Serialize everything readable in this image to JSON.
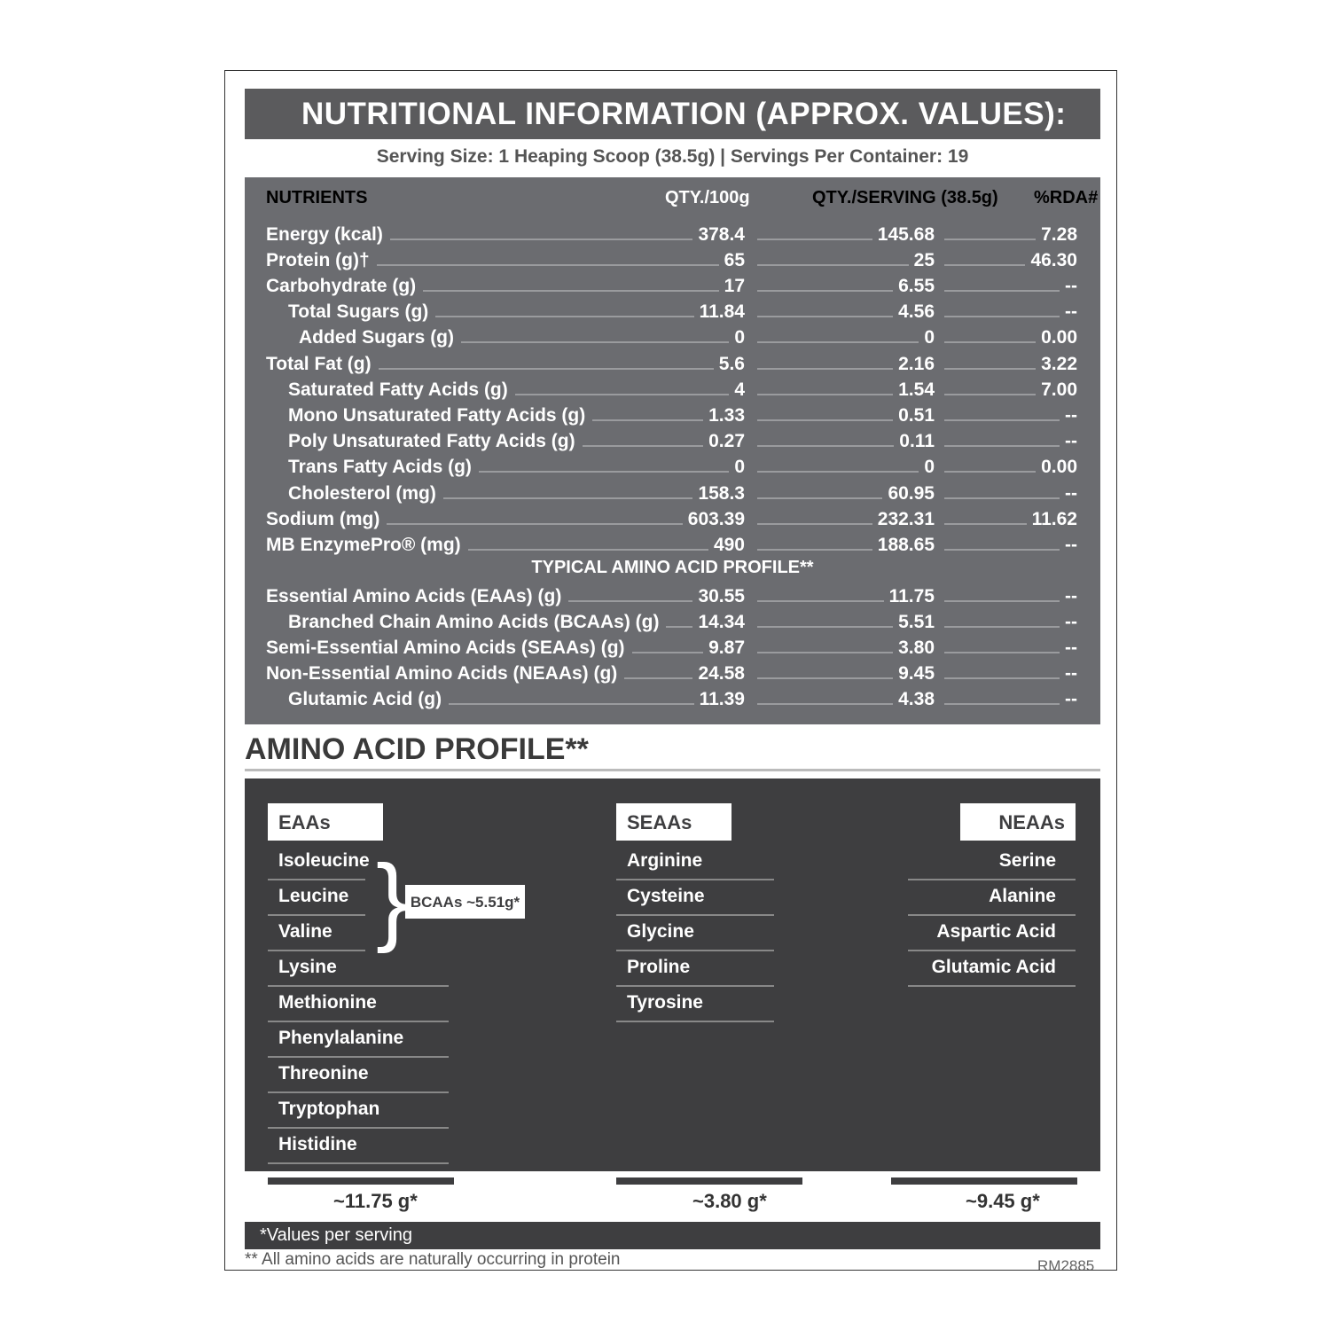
{
  "title": "NUTRITIONAL INFORMATION (APPROX. VALUES):",
  "serving_line": "Serving Size: 1 Heaping Scoop (38.5g)  |  Servings Per Container: 19",
  "headers": {
    "nutrients": "NUTRIENTS",
    "qty100": "QTY./100g",
    "qtyserving": "QTY./SERVING (38.5g)",
    "rda": "%RDA#"
  },
  "rows": [
    {
      "name": "Energy (kcal)",
      "q100": "378.4",
      "qs": "145.68",
      "rda": "7.28",
      "indent": 0
    },
    {
      "name": "Protein (g)†",
      "q100": "65",
      "qs": "25",
      "rda": "46.30",
      "indent": 0
    },
    {
      "name": "Carbohydrate (g)",
      "q100": "17",
      "qs": "6.55",
      "rda": "--",
      "indent": 0
    },
    {
      "name": "Total Sugars (g)",
      "q100": "11.84",
      "qs": "4.56",
      "rda": "--",
      "indent": 1
    },
    {
      "name": "Added Sugars (g)",
      "q100": "0",
      "qs": "0",
      "rda": "0.00",
      "indent": 2
    },
    {
      "name": "Total Fat (g)",
      "q100": "5.6",
      "qs": "2.16",
      "rda": "3.22",
      "indent": 0
    },
    {
      "name": "Saturated Fatty Acids (g)",
      "q100": "4",
      "qs": "1.54",
      "rda": "7.00",
      "indent": 1
    },
    {
      "name": "Mono Unsaturated Fatty Acids (g)",
      "q100": "1.33",
      "qs": "0.51",
      "rda": "--",
      "indent": 1
    },
    {
      "name": "Poly Unsaturated Fatty Acids (g)",
      "q100": "0.27",
      "qs": "0.11",
      "rda": "--",
      "indent": 1
    },
    {
      "name": "Trans Fatty Acids (g)",
      "q100": "0",
      "qs": "0",
      "rda": "0.00",
      "indent": 1
    },
    {
      "name": "Cholesterol (mg)",
      "q100": "158.3",
      "qs": "60.95",
      "rda": "--",
      "indent": 1
    },
    {
      "name": "Sodium (mg)",
      "q100": "603.39",
      "qs": "232.31",
      "rda": "11.62",
      "indent": 0
    },
    {
      "name": "MB EnzymePro® (mg)",
      "q100": "490",
      "qs": "188.65",
      "rda": "--",
      "indent": 0
    }
  ],
  "amino_subheader": "TYPICAL AMINO ACID PROFILE**",
  "amino_rows": [
    {
      "name": "Essential Amino Acids (EAAs) (g)",
      "q100": "30.55",
      "qs": "11.75",
      "rda": "--",
      "indent": 0
    },
    {
      "name": "Branched Chain Amino Acids (BCAAs) (g)",
      "q100": "14.34",
      "qs": "5.51",
      "rda": "--",
      "indent": 1
    },
    {
      "name": "Semi-Essential Amino Acids (SEAAs) (g)",
      "q100": "9.87",
      "qs": "3.80",
      "rda": "--",
      "indent": 0
    },
    {
      "name": "Non-Essential Amino Acids (NEAAs) (g)",
      "q100": "24.58",
      "qs": "9.45",
      "rda": "--",
      "indent": 0
    },
    {
      "name": "Glutamic Acid (g)",
      "q100": "11.39",
      "qs": "4.38",
      "rda": "--",
      "indent": 1
    }
  ],
  "profile_title": "AMINO ACID PROFILE**",
  "eaas": {
    "label": "EAAs",
    "items": [
      "Isoleucine",
      "Leucine",
      "Valine",
      "Lysine",
      "Methionine",
      "Phenylalanine",
      "Threonine",
      "Tryptophan",
      "Histidine"
    ],
    "total": "~11.75 g*"
  },
  "bcaa_label": "BCAAs ~5.51g*",
  "seaas": {
    "label": "SEAAs",
    "items": [
      "Arginine",
      "Cysteine",
      "Glycine",
      "Proline",
      "Tyrosine"
    ],
    "total": "~3.80 g*"
  },
  "neaas": {
    "label": "NEAAs",
    "items": [
      "Serine",
      "Alanine",
      "Aspartic Acid",
      "Glutamic Acid"
    ],
    "total": "~9.45 g*"
  },
  "note_serving": "*Values per serving",
  "note_amino": "** All amino acids are naturally occurring in protein",
  "code": "RM2885",
  "colors": {
    "title_bar": "#5b5b5d",
    "table_bg": "#6b6c70",
    "panel_bg": "#3e3e40"
  }
}
